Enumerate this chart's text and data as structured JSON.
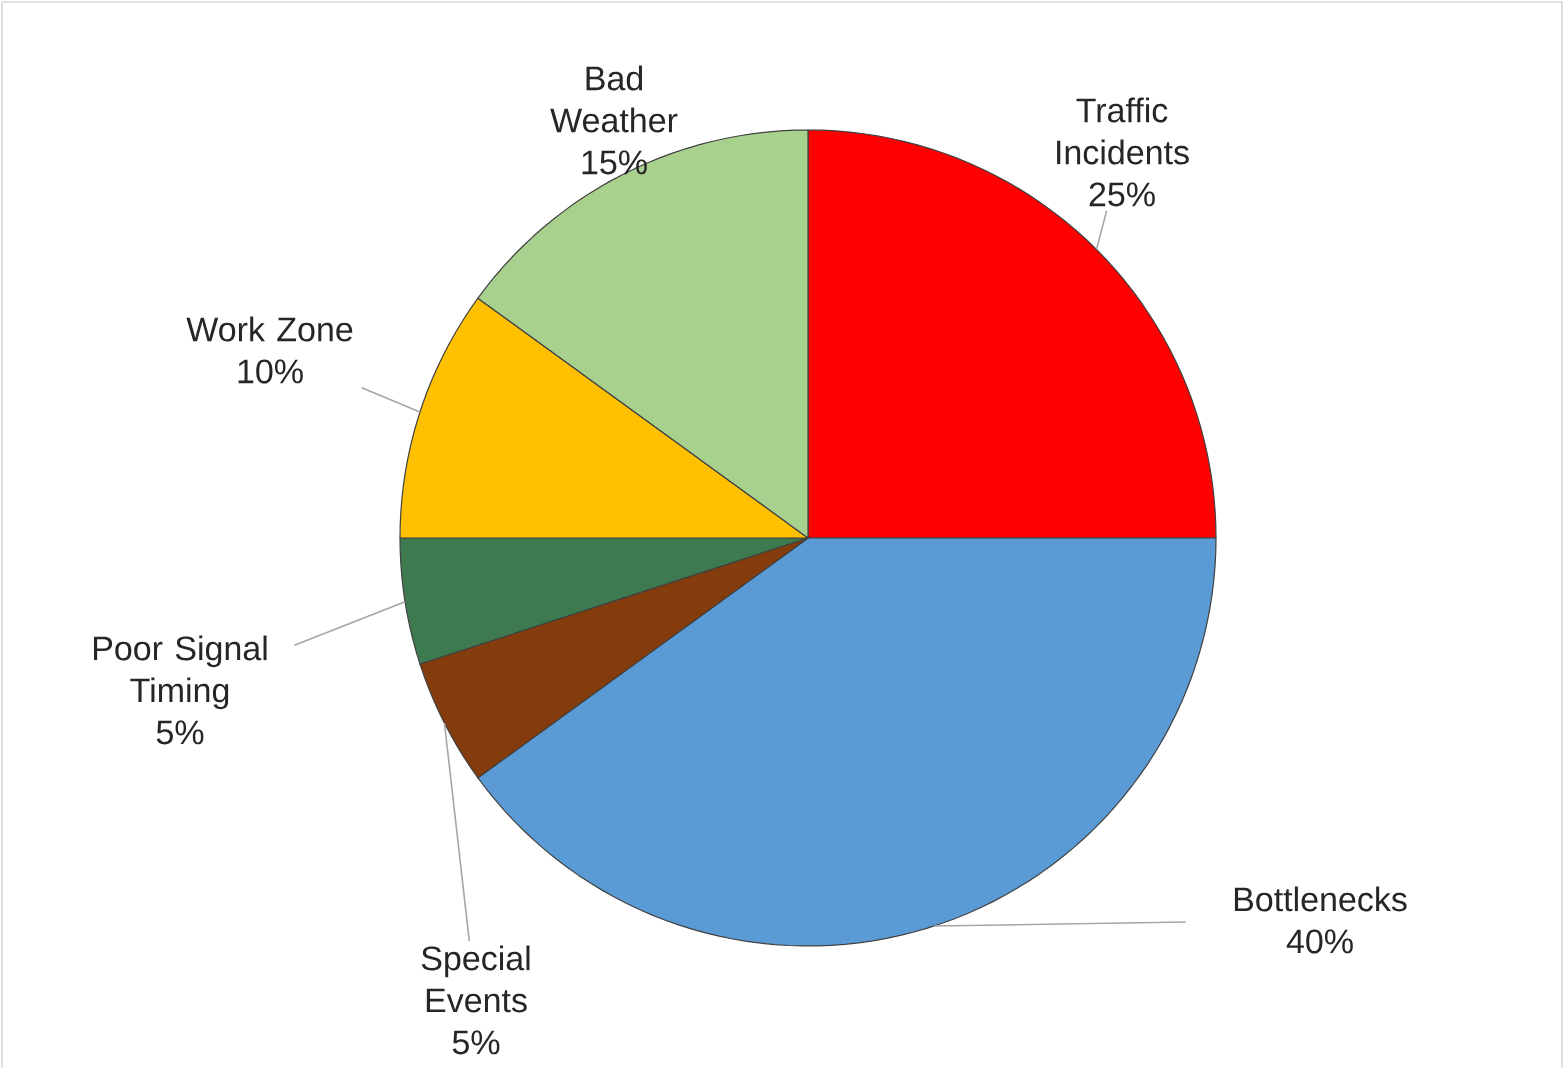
{
  "chart_data": {
    "type": "pie",
    "categories": [
      "Traffic Incidents",
      "Bottlenecks",
      "Special Events",
      "Poor Signal Timing",
      "Work Zone",
      "Bad Weather"
    ],
    "values": [
      25,
      40,
      5,
      5,
      10,
      15
    ],
    "value_labels": [
      "25%",
      "40%",
      "5%",
      "5%",
      "10%",
      "15%"
    ],
    "colors": [
      "#ff0000",
      "#5b9bd5",
      "#843c0c",
      "#3d7a4f",
      "#ffc000",
      "#a9d18e"
    ]
  }
}
